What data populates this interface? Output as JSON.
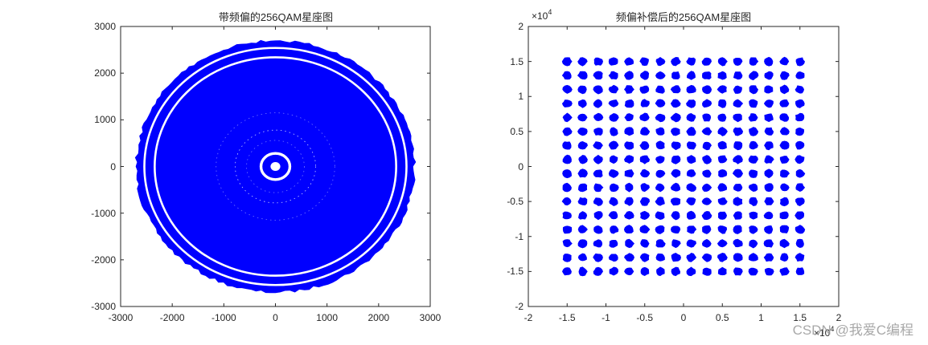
{
  "figure": {
    "watermark": "CSDN @我爱C编程",
    "marker_color": "#0000ff"
  },
  "chart_data": [
    {
      "type": "scatter",
      "title": "带频偏的256QAM星座图",
      "xlabel": "",
      "ylabel": "",
      "xlim": [
        -3000,
        3000
      ],
      "ylim": [
        -3000,
        3000
      ],
      "xticks": [
        -3000,
        -2000,
        -1000,
        0,
        1000,
        2000,
        3000
      ],
      "yticks": [
        3000,
        2000,
        1000,
        0,
        -1000,
        -2000,
        -3000
      ],
      "xtick_labels": [
        "-3000",
        "-2000",
        "-1000",
        "0",
        "1000",
        "2000",
        "3000"
      ],
      "ytick_labels": [
        "3000",
        "2000",
        "1000",
        "0",
        "-1000",
        "-2000",
        "-3000"
      ],
      "grid": false,
      "description": "Frequency-offset-rotated 256QAM symbols forming a filled blue disk of radius ~2700 with concentric rings",
      "rings": [
        {
          "radius": 2650,
          "kind": "outer-band"
        },
        {
          "radius": 2450,
          "kind": "band"
        },
        {
          "radius": 2250,
          "kind": "band"
        },
        {
          "radius": 750,
          "kind": "faint-ring-gap"
        },
        {
          "radius": 280,
          "kind": "white-gap-ring"
        },
        {
          "radius": 90,
          "kind": "center-hole"
        }
      ],
      "disk_radius": 2700,
      "color": "#0000ff"
    },
    {
      "type": "scatter",
      "title": "频偏补偿后的256QAM星座图",
      "xlabel": "",
      "ylabel": "",
      "xlim": [
        -20000,
        20000
      ],
      "ylim": [
        -20000,
        20000
      ],
      "x_exponent_label": "×10",
      "x_exponent": "4",
      "y_exponent_label": "×10",
      "y_exponent": "4",
      "xticks": [
        -2,
        -1.5,
        -1,
        -0.5,
        0,
        0.5,
        1,
        1.5,
        2
      ],
      "yticks": [
        2,
        1.5,
        1,
        0.5,
        0,
        -0.5,
        -1,
        -1.5,
        -2
      ],
      "xtick_labels": [
        "-2",
        "-1.5",
        "-1",
        "-0.5",
        "0",
        "0.5",
        "1",
        "1.5",
        "2"
      ],
      "ytick_labels": [
        "2",
        "1.5",
        "1",
        "0.5",
        "0",
        "-0.5",
        "-1",
        "-1.5",
        "-2"
      ],
      "grid": false,
      "constellation": {
        "points_per_axis": 16,
        "levels": [
          -15000,
          -13000,
          -11000,
          -9000,
          -7000,
          -5000,
          -3000,
          -1000,
          1000,
          3000,
          5000,
          7000,
          9000,
          11000,
          13000,
          15000
        ],
        "cluster_radius": 600
      },
      "color": "#0000ff"
    }
  ]
}
